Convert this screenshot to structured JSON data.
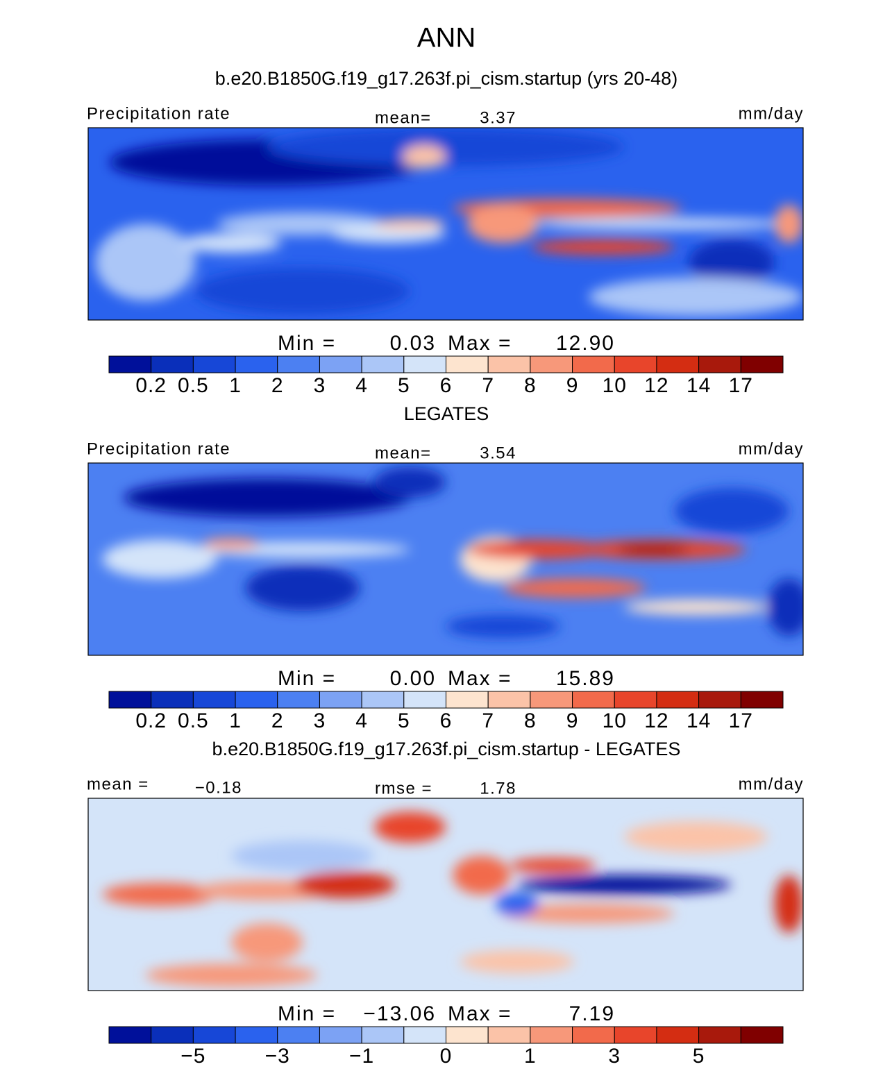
{
  "title": "ANN",
  "panels": [
    {
      "title": "b.e20.B1850G.f19_g17.263f.pi_cism.startup (yrs 20-48)",
      "left": {
        "label": "Precipitation rate"
      },
      "center": {
        "label": "mean=",
        "value": "3.37"
      },
      "units": "mm/day",
      "min_label": "Min =",
      "min_value": "0.03",
      "max_label": "Max =",
      "max_value": "12.90",
      "colorbar": {
        "colors": [
          "#00109a",
          "#0a2fba",
          "#1747d7",
          "#2a62ee",
          "#4c80f2",
          "#7ca2f4",
          "#abc6f7",
          "#d4e4f9",
          "#fde4cf",
          "#fbc3a8",
          "#f7987a",
          "#f26a4b",
          "#e8452b",
          "#d42d12",
          "#a8190c",
          "#800000"
        ],
        "labels": [
          "0.2",
          "0.5",
          "1",
          "2",
          "3",
          "4",
          "5",
          "6",
          "7",
          "8",
          "9",
          "10",
          "12",
          "14",
          "17"
        ]
      }
    },
    {
      "title": "LEGATES",
      "left": {
        "label": "Precipitation rate"
      },
      "center": {
        "label": "mean=",
        "value": "3.54"
      },
      "units": "mm/day",
      "min_label": "Min =",
      "min_value": "0.00",
      "max_label": "Max =",
      "max_value": "15.89",
      "colorbar": {
        "colors": [
          "#00109a",
          "#0a2fba",
          "#1747d7",
          "#2a62ee",
          "#4c80f2",
          "#7ca2f4",
          "#abc6f7",
          "#d4e4f9",
          "#fde4cf",
          "#fbc3a8",
          "#f7987a",
          "#f26a4b",
          "#e8452b",
          "#d42d12",
          "#a8190c",
          "#800000"
        ],
        "labels": [
          "0.2",
          "0.5",
          "1",
          "2",
          "3",
          "4",
          "5",
          "6",
          "7",
          "8",
          "9",
          "10",
          "12",
          "14",
          "17"
        ]
      }
    },
    {
      "title": "b.e20.B1850G.f19_g17.263f.pi_cism.startup - LEGATES",
      "left": {
        "label": "mean =",
        "value": "−0.18"
      },
      "center": {
        "label": "rmse =",
        "value": "1.78"
      },
      "units": "mm/day",
      "min_label": "Min =",
      "min_value": "−13.06",
      "max_label": "Max =",
      "max_value": "7.19",
      "colorbar": {
        "colors": [
          "#00109a",
          "#0a2fba",
          "#1747d7",
          "#2a62ee",
          "#4c80f2",
          "#7ca2f4",
          "#abc6f7",
          "#d4e4f9",
          "#fde4cf",
          "#fbc3a8",
          "#f7987a",
          "#f26a4b",
          "#e8452b",
          "#d42d12",
          "#a8190c",
          "#800000"
        ],
        "labels": [
          null,
          "−5",
          null,
          "−3",
          null,
          "−1",
          null,
          "0",
          null,
          "1",
          null,
          "3",
          null,
          "5",
          null
        ]
      }
    }
  ]
}
